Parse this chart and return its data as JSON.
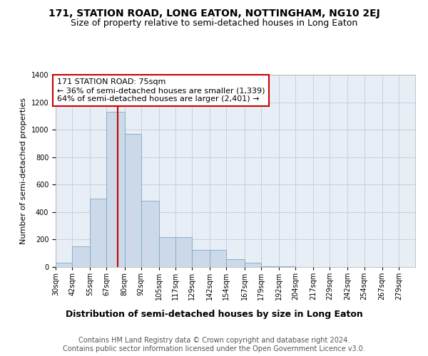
{
  "title": "171, STATION ROAD, LONG EATON, NOTTINGHAM, NG10 2EJ",
  "subtitle": "Size of property relative to semi-detached houses in Long Eaton",
  "xlabel": "Distribution of semi-detached houses by size in Long Eaton",
  "ylabel": "Number of semi-detached properties",
  "bin_labels": [
    "30sqm",
    "42sqm",
    "55sqm",
    "67sqm",
    "80sqm",
    "92sqm",
    "105sqm",
    "117sqm",
    "129sqm",
    "142sqm",
    "154sqm",
    "167sqm",
    "179sqm",
    "192sqm",
    "204sqm",
    "217sqm",
    "229sqm",
    "242sqm",
    "254sqm",
    "267sqm",
    "279sqm"
  ],
  "bin_edges": [
    30,
    42,
    55,
    67,
    80,
    92,
    105,
    117,
    129,
    142,
    154,
    167,
    179,
    192,
    204,
    217,
    229,
    242,
    254,
    267,
    279,
    291
  ],
  "bar_heights": [
    30,
    150,
    500,
    1130,
    970,
    480,
    220,
    220,
    125,
    125,
    55,
    30,
    5,
    3,
    2,
    1,
    1,
    1,
    0,
    0,
    0
  ],
  "bar_color": "#ccd9e8",
  "bar_edgecolor": "#7aaac8",
  "grid_color": "#c8d0dc",
  "bg_color": "#e8eef5",
  "property_line_x": 75,
  "property_line_color": "#cc0000",
  "annotation_text": "171 STATION ROAD: 75sqm\n← 36% of semi-detached houses are smaller (1,339)\n64% of semi-detached houses are larger (2,401) →",
  "annotation_box_facecolor": "#ffffff",
  "annotation_box_edgecolor": "#cc0000",
  "ylim": [
    0,
    1400
  ],
  "yticks": [
    0,
    200,
    400,
    600,
    800,
    1000,
    1200,
    1400
  ],
  "footer_text": "Contains HM Land Registry data © Crown copyright and database right 2024.\nContains public sector information licensed under the Open Government Licence v3.0.",
  "title_fontsize": 10,
  "subtitle_fontsize": 9,
  "tick_fontsize": 7,
  "ylabel_fontsize": 8,
  "xlabel_fontsize": 9,
  "annotation_fontsize": 8,
  "footer_fontsize": 7
}
